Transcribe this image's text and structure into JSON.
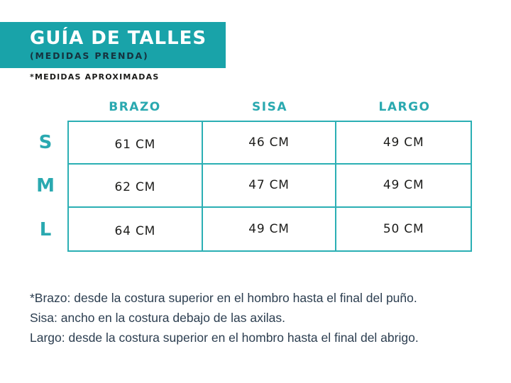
{
  "banner": {
    "title": "GUÍA DE TALLES",
    "subtitle": "(MEDIDAS PRENDA)"
  },
  "note": "*MEDIDAS APROXIMADAS",
  "table": {
    "columns": [
      "BRAZO",
      "SISA",
      "LARGO"
    ],
    "rows": [
      {
        "size": "S",
        "values": [
          "61 CM",
          "46 CM",
          "49 CM"
        ]
      },
      {
        "size": "M",
        "values": [
          "62 CM",
          "47 CM",
          "49 CM"
        ]
      },
      {
        "size": "L",
        "values": [
          "64 CM",
          "49 CM",
          "50 CM"
        ]
      }
    ]
  },
  "footnotes": [
    "*Brazo: desde la costura superior en el hombro hasta el final del puño.",
    "Sisa: ancho en la costura debajo de las axilas.",
    "Largo: desde la costura superior en el hombro hasta el final del abrigo."
  ],
  "colors": {
    "banner_teal": "#19a3a9",
    "border_teal": "#2bafb4",
    "accent_text_teal": "#2aa9b0",
    "banner_subtitle_dark": "#16323e",
    "cell_text": "#1d1d1b",
    "footnote_text": "#2c3e50"
  }
}
